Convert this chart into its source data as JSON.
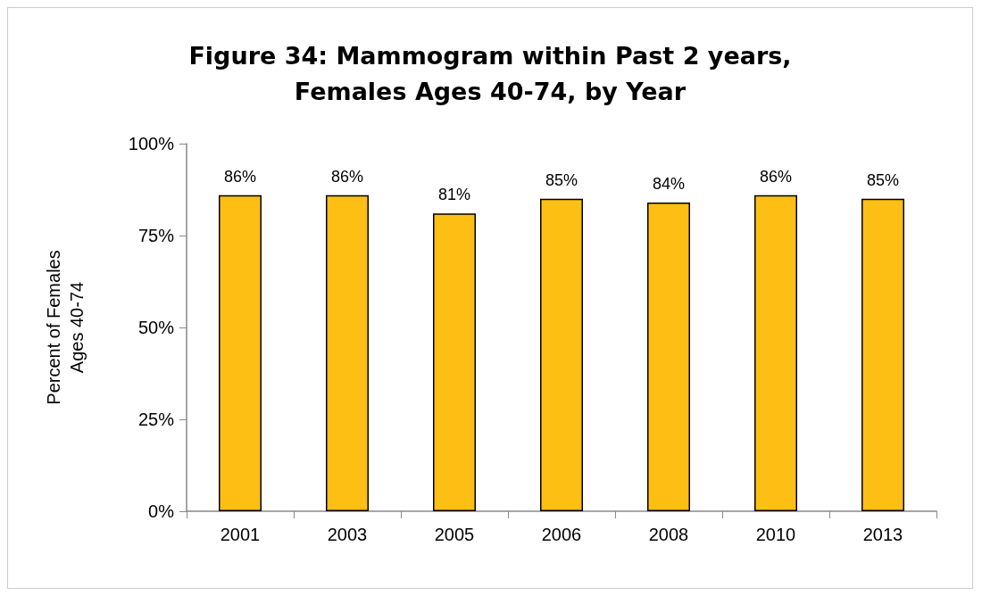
{
  "chart_data": {
    "type": "bar",
    "title": "Figure 34: Mammogram within Past 2 years,\nFemales Ages 40-74, by Year",
    "ylabel": "Percent of Females\nAges 40-74",
    "categories": [
      "2001",
      "2003",
      "2005",
      "2006",
      "2008",
      "2010",
      "2013"
    ],
    "values": [
      86,
      86,
      81,
      85,
      84,
      86,
      85
    ],
    "value_labels": [
      "86%",
      "86%",
      "81%",
      "85%",
      "84%",
      "86%",
      "85%"
    ],
    "color": "#fdbf14",
    "ylim": [
      0,
      100
    ],
    "yticks": [
      {
        "value": 0,
        "label": "0%"
      },
      {
        "value": 25,
        "label": "25%"
      },
      {
        "value": 50,
        "label": "50%"
      },
      {
        "value": 75,
        "label": "75%"
      },
      {
        "value": 100,
        "label": "100%"
      }
    ],
    "grid": false
  }
}
